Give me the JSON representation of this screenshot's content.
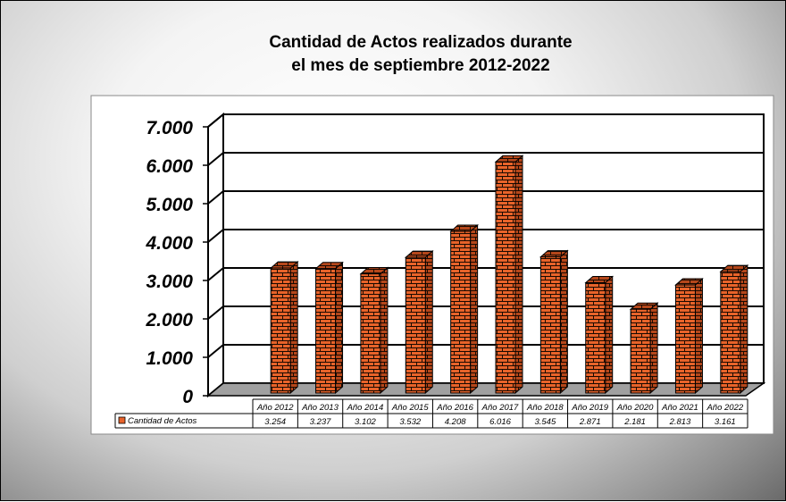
{
  "chart_data": {
    "type": "bar",
    "title": "Cantidad de Actos realizados durante el mes de septiembre 2012-2022",
    "title_lines": [
      "Cantidad de Actos realizados durante",
      "el mes de septiembre 2012-2022"
    ],
    "categories": [
      "Año 2012",
      "Año 2013",
      "Año 2014",
      "Año 2015",
      "Año 2016",
      "Año 2017",
      "Año 2018",
      "Año 2019",
      "Año 2020",
      "Año 2021",
      "Año 2022"
    ],
    "series": [
      {
        "name": "Cantidad de Actos",
        "values": [
          3254,
          3237,
          3102,
          3532,
          4208,
          6016,
          3545,
          2871,
          2181,
          2813,
          3161
        ],
        "labels": [
          "3.254",
          "3.237",
          "3.102",
          "3.532",
          "4.208",
          "6.016",
          "3.545",
          "2.871",
          "2.181",
          "2.813",
          "3.161"
        ]
      }
    ],
    "ylim": [
      0,
      7000
    ],
    "yticks": [
      0,
      1000,
      2000,
      3000,
      4000,
      5000,
      6000,
      7000
    ],
    "ytick_labels": [
      "0",
      "1.000",
      "2.000",
      "3.000",
      "4.000",
      "5.000",
      "6.000",
      "7.000"
    ],
    "xlabel": "",
    "ylabel": "",
    "grid": true,
    "legend": "data-table",
    "style": "3d-bars-brick-texture",
    "colors": {
      "bar": "#e8632a",
      "mortar": "#1a0a00",
      "plot_bg": "#ffffff",
      "floor": "#a0a0a0"
    }
  }
}
